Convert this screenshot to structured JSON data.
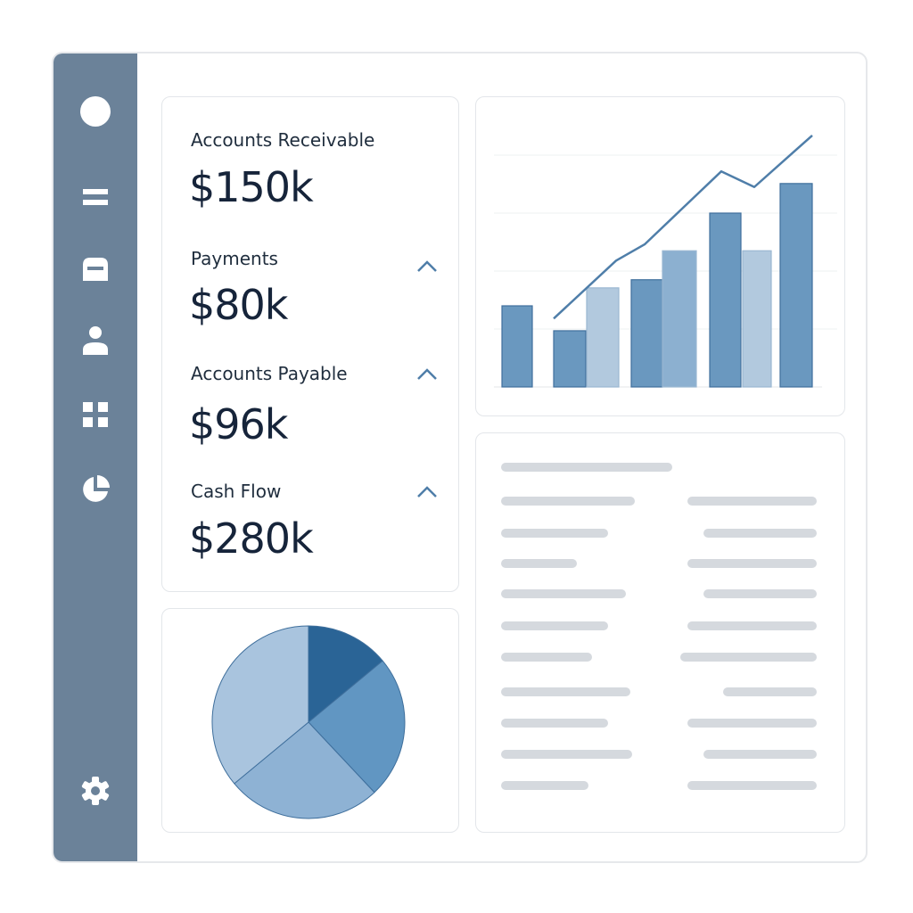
{
  "sidebar": {
    "items": [
      {
        "icon": "profile-circle-icon"
      },
      {
        "icon": "menu-icon"
      },
      {
        "icon": "inbox-icon"
      },
      {
        "icon": "user-icon"
      },
      {
        "icon": "grid-icon"
      },
      {
        "icon": "pie-chart-icon"
      }
    ],
    "settings_icon": "gear-icon"
  },
  "kpis": [
    {
      "label": "Accounts Receivable",
      "value": "$150k",
      "trend": null
    },
    {
      "label": "Payments",
      "value": "$80k",
      "trend": "chevron-up-icon"
    },
    {
      "label": "Accounts Payable",
      "value": "$96k",
      "trend": "chevron-up-icon"
    },
    {
      "label": "Cash Flow",
      "value": "$280k",
      "trend": "chevron-up-icon"
    }
  ],
  "colors": {
    "sidebar": "#6b8299",
    "dark": "#2a6496",
    "medium": "#6a98bf",
    "light": "#b2c9de",
    "line": "#4f7ea9"
  },
  "chart_data": [
    {
      "type": "bar",
      "grid": true,
      "ylim": [
        0,
        4.5
      ],
      "bars": [
        {
          "group": 1,
          "value": 1.4,
          "shade": "medium"
        },
        {
          "group": 2,
          "value": 0.97,
          "shade": "medium"
        },
        {
          "group": 2,
          "value": 1.71,
          "shade": "light"
        },
        {
          "group": 3,
          "value": 1.85,
          "shade": "medium"
        },
        {
          "group": 3,
          "value": 2.35,
          "shade": "mediumlight"
        },
        {
          "group": 4,
          "value": 3.0,
          "shade": "medium"
        },
        {
          "group": 4,
          "value": 2.35,
          "shade": "light"
        },
        {
          "group": 5,
          "value": 3.51,
          "shade": "medium"
        }
      ],
      "line": [
        1.18,
        2.18,
        2.46,
        3.72,
        3.45,
        4.34
      ]
    },
    {
      "type": "pie",
      "slices": [
        {
          "value": 14,
          "color": "#2a6496"
        },
        {
          "value": 24,
          "color": "#6196c2"
        },
        {
          "value": 26,
          "color": "#8eb2d4"
        },
        {
          "value": 36,
          "color": "#a9c4de"
        }
      ]
    }
  ]
}
